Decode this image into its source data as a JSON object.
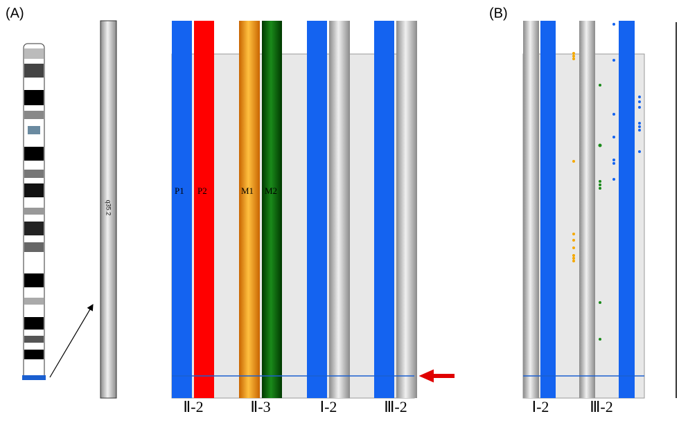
{
  "panel_a": {
    "label": "(A)",
    "band": "q35.2",
    "haplotypes": [
      "P1",
      "P2",
      "M1",
      "M2"
    ],
    "individuals": [
      "Ⅱ-2",
      "Ⅱ-3",
      "Ⅰ-2",
      "Ⅲ-2"
    ]
  },
  "panel_b": {
    "label": "(B)",
    "individuals": [
      "Ⅰ-2",
      "Ⅲ-2"
    ]
  }
}
